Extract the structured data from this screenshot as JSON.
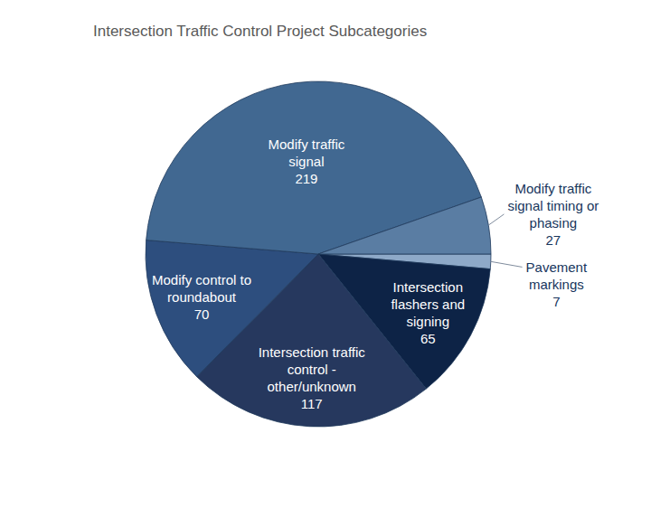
{
  "chart_data": {
    "type": "pie",
    "title": "Intersection Traffic Control Project Subcategories",
    "categories": [
      "Pavement\nmarkings",
      "Intersection\nflashers and\nsigning",
      "Intersection traffic\ncontrol -\nother/unknown",
      "Modify control to\nroundabout",
      "Modify traffic\nsignal",
      "Modify traffic\nsignal timing or\nphasing"
    ],
    "values": [
      7,
      65,
      117,
      70,
      219,
      27
    ],
    "colors": [
      "#8ea9c8",
      "#0d2346",
      "#26385e",
      "#2d4e7e",
      "#416891",
      "#5a7da3"
    ],
    "data_labels": true
  }
}
